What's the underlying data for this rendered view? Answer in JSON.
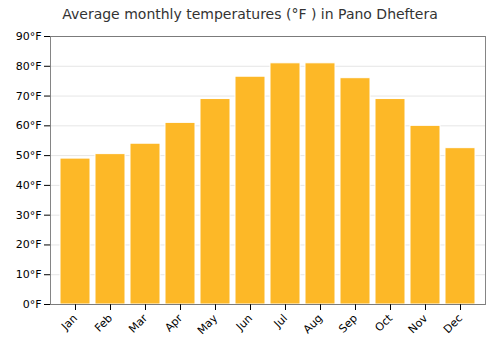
{
  "chart_data": {
    "type": "bar",
    "title": "Average monthly temperatures (°F ) in Pano Dheftera",
    "categories": [
      "Jan",
      "Feb",
      "Mar",
      "Apr",
      "May",
      "Jun",
      "Jul",
      "Aug",
      "Sep",
      "Oct",
      "Nov",
      "Dec"
    ],
    "values": [
      49,
      50.5,
      54,
      61,
      69,
      76.5,
      81,
      81,
      76,
      69,
      60,
      52.5
    ],
    "color": "#FDB827",
    "ylim": [
      0,
      90
    ],
    "yticks": [
      {
        "value": 0,
        "label": "0°F"
      },
      {
        "value": 10,
        "label": "10°F"
      },
      {
        "value": 20,
        "label": "20°F"
      },
      {
        "value": 30,
        "label": "30°F"
      },
      {
        "value": 40,
        "label": "40°F"
      },
      {
        "value": 50,
        "label": "50°F"
      },
      {
        "value": 60,
        "label": "60°F"
      },
      {
        "value": 70,
        "label": "70°F"
      },
      {
        "value": 80,
        "label": "80°F"
      },
      {
        "value": 90,
        "label": "90°F"
      }
    ],
    "grid": true
  }
}
